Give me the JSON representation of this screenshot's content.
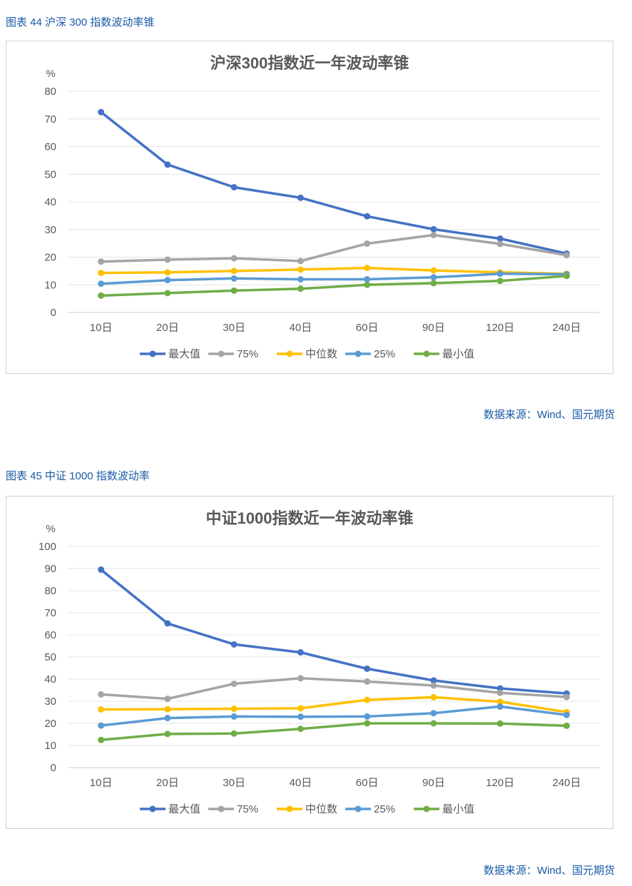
{
  "figures": [
    {
      "caption": "图表 44  沪深 300 指数波动率锥",
      "source": "数据来源：Wind、国元期货"
    },
    {
      "caption": "图表 45  中证 1000 指数波动率",
      "source": "数据来源：Wind、国元期货"
    }
  ],
  "chart_data": [
    {
      "type": "line",
      "title": "沪深300指数近一年波动率锥",
      "ylabel": "%",
      "ylim": [
        0,
        80
      ],
      "yticks": [
        0,
        10,
        20,
        30,
        40,
        50,
        60,
        70,
        80
      ],
      "categories": [
        "10日",
        "20日",
        "30日",
        "40日",
        "60日",
        "90日",
        "120日",
        "240日"
      ],
      "grid": true,
      "legend_position": "bottom",
      "series": [
        {
          "name": "最大值",
          "color": "#4472c4",
          "values": [
            72.5,
            53.5,
            45.3,
            41.5,
            34.8,
            30.1,
            26.7,
            21.3
          ]
        },
        {
          "name": "75%",
          "color": "#a5a5a5",
          "values": [
            18.4,
            19.1,
            19.6,
            18.6,
            24.9,
            28.0,
            24.8,
            20.7
          ]
        },
        {
          "name": "中位数",
          "color": "#ffc000",
          "values": [
            14.3,
            14.5,
            15.0,
            15.5,
            16.1,
            15.2,
            14.5,
            14.0
          ]
        },
        {
          "name": "25%",
          "color": "#5b9bd5",
          "values": [
            10.4,
            11.7,
            12.3,
            12.0,
            12.0,
            12.7,
            14.0,
            13.8
          ]
        },
        {
          "name": "最小值",
          "color": "#70ad47",
          "values": [
            6.1,
            7.0,
            7.9,
            8.6,
            10.0,
            10.6,
            11.4,
            13.2
          ]
        }
      ]
    },
    {
      "type": "line",
      "title": "中证1000指数近一年波动率锥",
      "ylabel": "%",
      "ylim": [
        0,
        100
      ],
      "yticks": [
        0,
        10,
        20,
        30,
        40,
        50,
        60,
        70,
        80,
        90,
        100
      ],
      "categories": [
        "10日",
        "20日",
        "30日",
        "40日",
        "60日",
        "90日",
        "120日",
        "240日"
      ],
      "grid": true,
      "legend_position": "bottom",
      "series": [
        {
          "name": "最大值",
          "color": "#4472c4",
          "values": [
            89.5,
            65.2,
            55.7,
            52.1,
            44.7,
            39.4,
            35.8,
            33.5
          ]
        },
        {
          "name": "75%",
          "color": "#a5a5a5",
          "values": [
            33.1,
            31.1,
            37.9,
            40.4,
            38.9,
            37.1,
            33.8,
            31.9
          ]
        },
        {
          "name": "中位数",
          "color": "#ffc000",
          "values": [
            26.3,
            26.4,
            26.6,
            26.8,
            30.6,
            31.8,
            29.8,
            25.1
          ]
        },
        {
          "name": "25%",
          "color": "#5b9bd5",
          "values": [
            19.0,
            22.4,
            23.1,
            23.0,
            23.1,
            24.6,
            27.6,
            23.8
          ]
        },
        {
          "name": "最小值",
          "color": "#70ad47",
          "values": [
            12.5,
            15.2,
            15.4,
            17.5,
            20.0,
            20.0,
            19.9,
            18.9
          ]
        }
      ]
    }
  ]
}
